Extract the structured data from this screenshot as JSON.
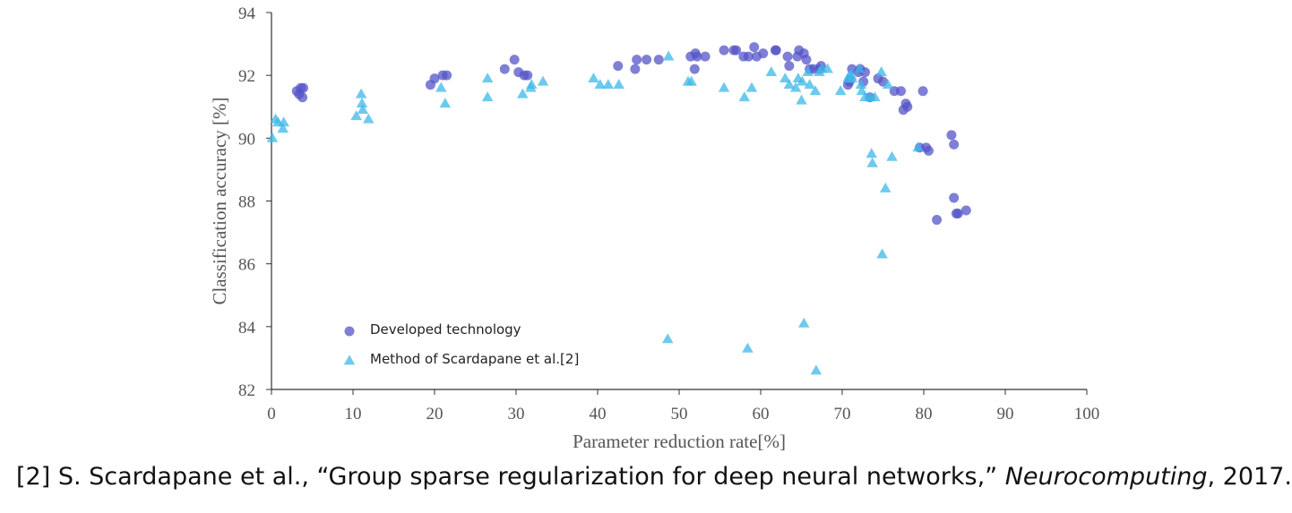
{
  "chart_data": {
    "type": "scatter",
    "xlabel": "Parameter reduction rate[%]",
    "ylabel": "Classification accuracy [%]",
    "xlim": [
      0,
      100
    ],
    "ylim": [
      82,
      94
    ],
    "xticks": [
      0,
      10,
      20,
      30,
      40,
      50,
      60,
      70,
      80,
      90,
      100
    ],
    "yticks": [
      82,
      84,
      86,
      88,
      90,
      92,
      94
    ],
    "grid": false,
    "legend_position": "lower-left",
    "series": [
      {
        "name": "Developed technology",
        "marker": "circle",
        "color": "#5454c8",
        "points": [
          [
            3.1,
            91.5
          ],
          [
            3.4,
            91.4
          ],
          [
            3.6,
            91.6
          ],
          [
            3.8,
            91.3
          ],
          [
            3.9,
            91.6
          ],
          [
            19.5,
            91.7
          ],
          [
            20.0,
            91.9
          ],
          [
            21.0,
            92.0
          ],
          [
            21.5,
            92.0
          ],
          [
            28.6,
            92.2
          ],
          [
            29.8,
            92.5
          ],
          [
            30.3,
            92.1
          ],
          [
            31.0,
            92.0
          ],
          [
            31.4,
            92.0
          ],
          [
            42.5,
            92.3
          ],
          [
            44.6,
            92.2
          ],
          [
            44.8,
            92.5
          ],
          [
            46.0,
            92.5
          ],
          [
            47.5,
            92.5
          ],
          [
            51.4,
            92.6
          ],
          [
            51.9,
            92.2
          ],
          [
            52.0,
            92.7
          ],
          [
            52.2,
            92.6
          ],
          [
            53.2,
            92.6
          ],
          [
            55.5,
            92.8
          ],
          [
            56.7,
            92.8
          ],
          [
            57.0,
            92.8
          ],
          [
            57.9,
            92.6
          ],
          [
            58.5,
            92.6
          ],
          [
            59.2,
            92.9
          ],
          [
            59.5,
            92.6
          ],
          [
            60.3,
            92.7
          ],
          [
            61.8,
            92.8
          ],
          [
            61.9,
            92.8
          ],
          [
            63.3,
            92.6
          ],
          [
            63.5,
            92.3
          ],
          [
            64.5,
            92.6
          ],
          [
            64.7,
            92.8
          ],
          [
            65.3,
            92.7
          ],
          [
            65.6,
            92.5
          ],
          [
            66.0,
            92.2
          ],
          [
            66.5,
            92.2
          ],
          [
            67.2,
            92.2
          ],
          [
            67.4,
            92.3
          ],
          [
            70.7,
            91.7
          ],
          [
            70.9,
            91.8
          ],
          [
            71.2,
            92.2
          ],
          [
            72.0,
            92.1
          ],
          [
            72.2,
            92.2
          ],
          [
            72.6,
            91.8
          ],
          [
            72.8,
            92.1
          ],
          [
            73.4,
            91.3
          ],
          [
            74.4,
            91.9
          ],
          [
            75.0,
            91.8
          ],
          [
            76.4,
            91.5
          ],
          [
            77.2,
            91.5
          ],
          [
            77.5,
            90.9
          ],
          [
            77.8,
            91.1
          ],
          [
            78.0,
            91.0
          ],
          [
            79.5,
            89.7
          ],
          [
            79.9,
            91.5
          ],
          [
            80.3,
            89.7
          ],
          [
            80.6,
            89.6
          ],
          [
            83.4,
            90.1
          ],
          [
            83.7,
            89.8
          ],
          [
            83.7,
            88.1
          ],
          [
            84.0,
            87.6
          ],
          [
            84.2,
            87.6
          ],
          [
            81.6,
            87.4
          ],
          [
            85.2,
            87.7
          ]
        ]
      },
      {
        "name": "Method of Scardapane et al.[2]",
        "marker": "triangle",
        "color": "#3cb8e8",
        "points": [
          [
            0.1,
            90.0
          ],
          [
            0.5,
            90.6
          ],
          [
            0.8,
            90.5
          ],
          [
            1.4,
            90.3
          ],
          [
            1.5,
            90.5
          ],
          [
            10.4,
            90.7
          ],
          [
            11.0,
            91.4
          ],
          [
            11.1,
            91.1
          ],
          [
            11.2,
            90.9
          ],
          [
            11.9,
            90.6
          ],
          [
            20.8,
            91.6
          ],
          [
            21.3,
            91.1
          ],
          [
            26.5,
            91.9
          ],
          [
            26.5,
            91.3
          ],
          [
            30.8,
            91.4
          ],
          [
            31.8,
            91.6
          ],
          [
            31.9,
            91.7
          ],
          [
            33.3,
            91.8
          ],
          [
            39.5,
            91.9
          ],
          [
            40.3,
            91.7
          ],
          [
            41.3,
            91.7
          ],
          [
            42.6,
            91.7
          ],
          [
            48.7,
            92.6
          ],
          [
            51.1,
            91.8
          ],
          [
            51.5,
            91.8
          ],
          [
            55.5,
            91.6
          ],
          [
            58.0,
            91.3
          ],
          [
            58.9,
            91.6
          ],
          [
            61.3,
            92.1
          ],
          [
            63.0,
            91.9
          ],
          [
            63.5,
            91.7
          ],
          [
            64.3,
            91.6
          ],
          [
            64.6,
            91.9
          ],
          [
            65.0,
            91.2
          ],
          [
            65.1,
            91.8
          ],
          [
            65.8,
            92.1
          ],
          [
            66.0,
            91.7
          ],
          [
            66.7,
            91.5
          ],
          [
            67.2,
            92.1
          ],
          [
            67.5,
            92.2
          ],
          [
            68.2,
            92.2
          ],
          [
            69.8,
            91.5
          ],
          [
            70.7,
            91.9
          ],
          [
            70.9,
            92.0
          ],
          [
            71.1,
            92.0
          ],
          [
            71.2,
            91.9
          ],
          [
            72.1,
            92.2
          ],
          [
            72.3,
            91.7
          ],
          [
            72.4,
            91.5
          ],
          [
            72.8,
            91.3
          ],
          [
            73.4,
            91.3
          ],
          [
            74.0,
            91.3
          ],
          [
            74.8,
            92.1
          ],
          [
            75.6,
            91.7
          ],
          [
            73.6,
            89.5
          ],
          [
            73.7,
            89.2
          ],
          [
            76.1,
            89.4
          ],
          [
            79.3,
            89.7
          ],
          [
            75.3,
            88.4
          ],
          [
            74.9,
            86.3
          ],
          [
            48.6,
            83.6
          ],
          [
            58.4,
            83.3
          ],
          [
            65.3,
            84.1
          ],
          [
            66.8,
            82.6
          ]
        ]
      }
    ]
  },
  "citation": {
    "prefix": "[2] S. Scardapane et al., “Group sparse regularization for deep neural networks,” ",
    "journal": "Neurocomputing",
    "suffix": ", 2017."
  }
}
